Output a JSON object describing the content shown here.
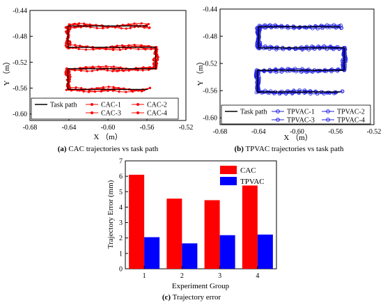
{
  "colors": {
    "task_path": "#000000",
    "cac": "#ff0000",
    "tpvac": "#2020e0",
    "bar_cac": "#ff0000",
    "bar_tpvac": "#0000ff"
  },
  "chart_data": [
    {
      "type": "line",
      "panel": "a",
      "caption_letter": "(a)",
      "caption_text": " CAC trajectories vs task path",
      "xlabel": "X （m）",
      "ylabel": "Y （m）",
      "xlim": [
        -0.68,
        -0.52
      ],
      "ylim": [
        -0.61,
        -0.44
      ],
      "xticks": [
        "-0.68",
        "-0.64",
        "-0.60",
        "-0.56",
        "-0.52"
      ],
      "yticks": [
        "-0.44",
        "-0.48",
        "-0.52",
        "-0.56",
        "-0.60"
      ],
      "task_path": {
        "name": "Task path",
        "points": [
          [
            -0.559,
            -0.464
          ],
          [
            -0.641,
            -0.464
          ],
          [
            -0.641,
            -0.497
          ],
          [
            -0.551,
            -0.497
          ],
          [
            -0.551,
            -0.53
          ],
          [
            -0.641,
            -0.53
          ],
          [
            -0.641,
            -0.562
          ],
          [
            -0.559,
            -0.562
          ]
        ]
      },
      "series": [
        {
          "name": "CAC-1",
          "marker": "dot"
        },
        {
          "name": "CAC-2",
          "marker": "dot"
        },
        {
          "name": "CAC-3",
          "marker": "triangle"
        },
        {
          "name": "CAC-4",
          "marker": "star"
        }
      ],
      "legend_position": "bottom"
    },
    {
      "type": "line",
      "panel": "b",
      "caption_letter": "(b)",
      "caption_text": " TPVAC trajectories vs task path",
      "xlabel": "X （m）",
      "ylabel": "Y （m）",
      "xlim": [
        -0.68,
        -0.52
      ],
      "ylim": [
        -0.61,
        -0.44
      ],
      "xticks": [
        "-0.68",
        "-0.64",
        "-0.60",
        "-0.56",
        "-0.52"
      ],
      "yticks": [
        "-0.44",
        "-0.48",
        "-0.52",
        "-0.56",
        "-0.60"
      ],
      "task_path": {
        "name": "Task path",
        "points": [
          [
            -0.555,
            -0.466
          ],
          [
            -0.64,
            -0.466
          ],
          [
            -0.64,
            -0.497
          ],
          [
            -0.551,
            -0.497
          ],
          [
            -0.551,
            -0.53
          ],
          [
            -0.641,
            -0.53
          ],
          [
            -0.641,
            -0.562
          ],
          [
            -0.555,
            -0.562
          ]
        ]
      },
      "series": [
        {
          "name": "TPVAC-1",
          "marker": "circle"
        },
        {
          "name": "TPVAC-2",
          "marker": "circle"
        },
        {
          "name": "TPVAC-3",
          "marker": "circle"
        },
        {
          "name": "TPVAC-4",
          "marker": "circle"
        }
      ],
      "legend_position": "bottom"
    },
    {
      "type": "bar",
      "panel": "c",
      "caption_letter": "(c)",
      "caption_text": " Trajectory error",
      "xlabel": "Experiment Group",
      "ylabel": "Trajectory Error (mm)",
      "categories": [
        "1",
        "2",
        "3",
        "4"
      ],
      "ylim": [
        0,
        7
      ],
      "yticks": [
        "0",
        "1",
        "2",
        "3",
        "4",
        "5",
        "6",
        "7"
      ],
      "series": [
        {
          "name": "CAC",
          "values": [
            6.1,
            4.55,
            4.45,
            5.4
          ]
        },
        {
          "name": "TPVAC",
          "values": [
            2.05,
            1.65,
            2.18,
            2.22
          ]
        }
      ],
      "legend_position": "top-right"
    }
  ]
}
